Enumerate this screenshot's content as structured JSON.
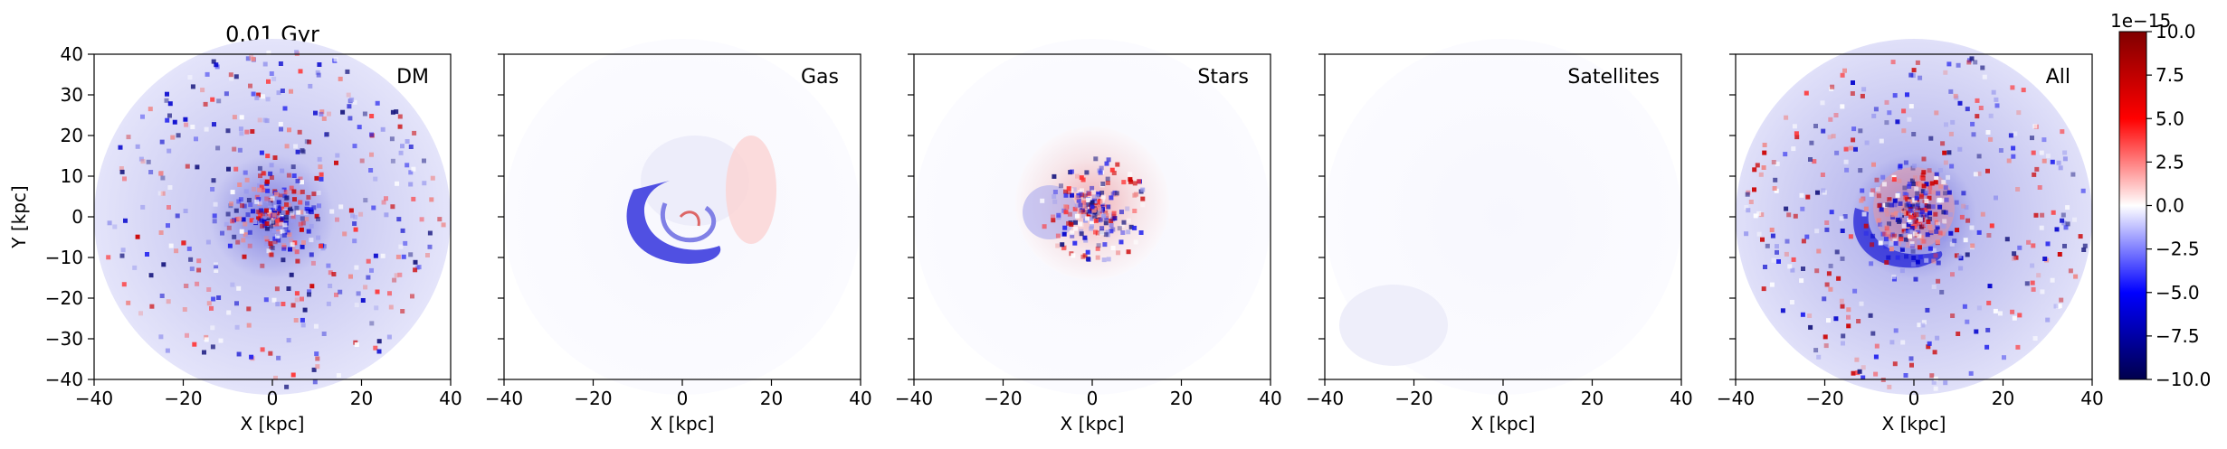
{
  "chart_data": {
    "type": "heatmap",
    "title": "0.01 Gyr",
    "xlabel": "X [kpc]",
    "ylabel": "Y [kpc]",
    "xlim": [
      -40,
      40
    ],
    "ylim": [
      -40,
      40
    ],
    "xticks": [
      -40,
      -20,
      0,
      20,
      40
    ],
    "yticks": [
      40,
      30,
      20,
      10,
      0,
      -10,
      -20,
      -30,
      -40
    ],
    "xtick_labels": [
      "−40",
      "−20",
      "0",
      "20",
      "40"
    ],
    "ytick_labels": [
      "40",
      "30",
      "20",
      "10",
      "0",
      "−10",
      "−20",
      "−30",
      "−40"
    ],
    "colormap": "seismic",
    "colorbar": {
      "range": [
        -10.0,
        10.0
      ],
      "exponent_label": "1e−15",
      "ticks": [
        10.0,
        7.5,
        5.0,
        2.5,
        0.0,
        -2.5,
        -5.0,
        -7.5,
        -10.0
      ],
      "tick_labels": [
        "10.0",
        "7.5",
        "5.0",
        "2.5",
        "0.0",
        "−2.5",
        "−5.0",
        "−7.5",
        "−10.0"
      ],
      "colors": [
        "#00004c",
        "#0000ff",
        "#ffffff",
        "#ff0000",
        "#800000"
      ]
    },
    "panels": [
      {
        "label": "DM"
      },
      {
        "label": "Gas"
      },
      {
        "label": "Stars"
      },
      {
        "label": "Satellites"
      },
      {
        "label": "All"
      }
    ]
  }
}
